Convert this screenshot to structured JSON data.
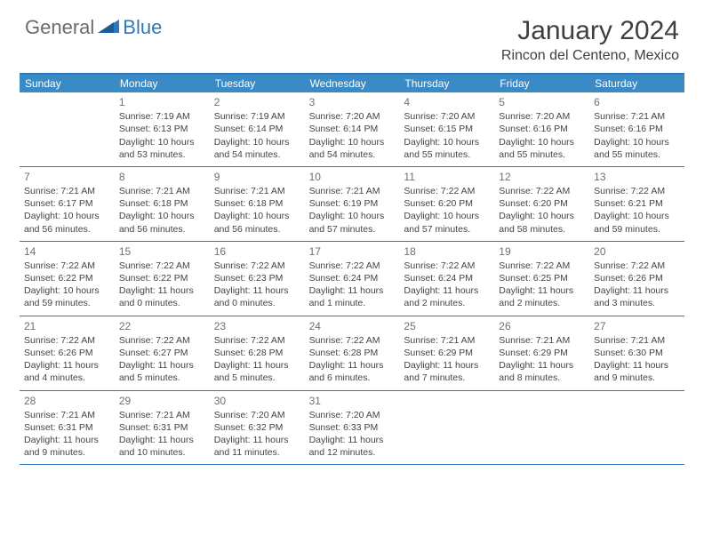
{
  "brand": {
    "part1": "General",
    "part2": "Blue"
  },
  "title": "January 2024",
  "location": "Rincon del Centeno, Mexico",
  "colors": {
    "header_bar": "#3a8ac6",
    "rule": "#2f78bd",
    "text": "#3f3f3f",
    "daynum": "#6f6f6f",
    "logo_gray": "#6b6b6b",
    "logo_blue": "#2f78bd",
    "bg": "#ffffff"
  },
  "weekdays": [
    "Sunday",
    "Monday",
    "Tuesday",
    "Wednesday",
    "Thursday",
    "Friday",
    "Saturday"
  ],
  "labels": {
    "sunrise": "Sunrise:",
    "sunset": "Sunset:",
    "daylight": "Daylight:"
  },
  "weeks": [
    [
      null,
      {
        "n": "1",
        "rise": "7:19 AM",
        "set": "6:13 PM",
        "dl1": "10 hours",
        "dl2": "and 53 minutes."
      },
      {
        "n": "2",
        "rise": "7:19 AM",
        "set": "6:14 PM",
        "dl1": "10 hours",
        "dl2": "and 54 minutes."
      },
      {
        "n": "3",
        "rise": "7:20 AM",
        "set": "6:14 PM",
        "dl1": "10 hours",
        "dl2": "and 54 minutes."
      },
      {
        "n": "4",
        "rise": "7:20 AM",
        "set": "6:15 PM",
        "dl1": "10 hours",
        "dl2": "and 55 minutes."
      },
      {
        "n": "5",
        "rise": "7:20 AM",
        "set": "6:16 PM",
        "dl1": "10 hours",
        "dl2": "and 55 minutes."
      },
      {
        "n": "6",
        "rise": "7:21 AM",
        "set": "6:16 PM",
        "dl1": "10 hours",
        "dl2": "and 55 minutes."
      }
    ],
    [
      {
        "n": "7",
        "rise": "7:21 AM",
        "set": "6:17 PM",
        "dl1": "10 hours",
        "dl2": "and 56 minutes."
      },
      {
        "n": "8",
        "rise": "7:21 AM",
        "set": "6:18 PM",
        "dl1": "10 hours",
        "dl2": "and 56 minutes."
      },
      {
        "n": "9",
        "rise": "7:21 AM",
        "set": "6:18 PM",
        "dl1": "10 hours",
        "dl2": "and 56 minutes."
      },
      {
        "n": "10",
        "rise": "7:21 AM",
        "set": "6:19 PM",
        "dl1": "10 hours",
        "dl2": "and 57 minutes."
      },
      {
        "n": "11",
        "rise": "7:22 AM",
        "set": "6:20 PM",
        "dl1": "10 hours",
        "dl2": "and 57 minutes."
      },
      {
        "n": "12",
        "rise": "7:22 AM",
        "set": "6:20 PM",
        "dl1": "10 hours",
        "dl2": "and 58 minutes."
      },
      {
        "n": "13",
        "rise": "7:22 AM",
        "set": "6:21 PM",
        "dl1": "10 hours",
        "dl2": "and 59 minutes."
      }
    ],
    [
      {
        "n": "14",
        "rise": "7:22 AM",
        "set": "6:22 PM",
        "dl1": "10 hours",
        "dl2": "and 59 minutes."
      },
      {
        "n": "15",
        "rise": "7:22 AM",
        "set": "6:22 PM",
        "dl1": "11 hours",
        "dl2": "and 0 minutes."
      },
      {
        "n": "16",
        "rise": "7:22 AM",
        "set": "6:23 PM",
        "dl1": "11 hours",
        "dl2": "and 0 minutes."
      },
      {
        "n": "17",
        "rise": "7:22 AM",
        "set": "6:24 PM",
        "dl1": "11 hours",
        "dl2": "and 1 minute."
      },
      {
        "n": "18",
        "rise": "7:22 AM",
        "set": "6:24 PM",
        "dl1": "11 hours",
        "dl2": "and 2 minutes."
      },
      {
        "n": "19",
        "rise": "7:22 AM",
        "set": "6:25 PM",
        "dl1": "11 hours",
        "dl2": "and 2 minutes."
      },
      {
        "n": "20",
        "rise": "7:22 AM",
        "set": "6:26 PM",
        "dl1": "11 hours",
        "dl2": "and 3 minutes."
      }
    ],
    [
      {
        "n": "21",
        "rise": "7:22 AM",
        "set": "6:26 PM",
        "dl1": "11 hours",
        "dl2": "and 4 minutes."
      },
      {
        "n": "22",
        "rise": "7:22 AM",
        "set": "6:27 PM",
        "dl1": "11 hours",
        "dl2": "and 5 minutes."
      },
      {
        "n": "23",
        "rise": "7:22 AM",
        "set": "6:28 PM",
        "dl1": "11 hours",
        "dl2": "and 5 minutes."
      },
      {
        "n": "24",
        "rise": "7:22 AM",
        "set": "6:28 PM",
        "dl1": "11 hours",
        "dl2": "and 6 minutes."
      },
      {
        "n": "25",
        "rise": "7:21 AM",
        "set": "6:29 PM",
        "dl1": "11 hours",
        "dl2": "and 7 minutes."
      },
      {
        "n": "26",
        "rise": "7:21 AM",
        "set": "6:29 PM",
        "dl1": "11 hours",
        "dl2": "and 8 minutes."
      },
      {
        "n": "27",
        "rise": "7:21 AM",
        "set": "6:30 PM",
        "dl1": "11 hours",
        "dl2": "and 9 minutes."
      }
    ],
    [
      {
        "n": "28",
        "rise": "7:21 AM",
        "set": "6:31 PM",
        "dl1": "11 hours",
        "dl2": "and 9 minutes."
      },
      {
        "n": "29",
        "rise": "7:21 AM",
        "set": "6:31 PM",
        "dl1": "11 hours",
        "dl2": "and 10 minutes."
      },
      {
        "n": "30",
        "rise": "7:20 AM",
        "set": "6:32 PM",
        "dl1": "11 hours",
        "dl2": "and 11 minutes."
      },
      {
        "n": "31",
        "rise": "7:20 AM",
        "set": "6:33 PM",
        "dl1": "11 hours",
        "dl2": "and 12 minutes."
      },
      null,
      null,
      null
    ]
  ]
}
